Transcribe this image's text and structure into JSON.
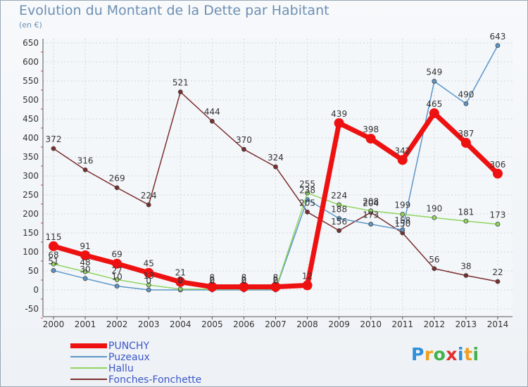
{
  "title": "Evolution du Montant de la Dette par Habitant",
  "unit_label": "(en €)",
  "logo": {
    "letters": [
      "P",
      "r",
      "o",
      "x",
      "i",
      "t",
      "i"
    ],
    "colors": [
      "#2f8fd8",
      "#f0a020",
      "#3fb24a",
      "#e03030",
      "#2f8fd8",
      "#f0a020",
      "#3fb24a"
    ]
  },
  "chart_data": {
    "type": "line",
    "x": [
      "2000",
      "2001",
      "2002",
      "2003",
      "2004",
      "2005",
      "2006",
      "2007",
      "2008",
      "2009",
      "2010",
      "2011",
      "2012",
      "2013",
      "2014"
    ],
    "yticks": [
      -50,
      0,
      50,
      100,
      150,
      200,
      250,
      300,
      350,
      400,
      450,
      500,
      550,
      600,
      650
    ],
    "ylim": [
      -50,
      650
    ],
    "grid": true,
    "legend_position": "bottom-left",
    "series": [
      {
        "name": "Fonches-Fonchette",
        "color": "#7a2e2e",
        "width": 1.5,
        "marker": 3,
        "values": [
          372,
          316,
          269,
          224,
          521,
          444,
          370,
          324,
          205,
          156,
          204,
          150,
          56,
          38,
          22
        ],
        "labels": [
          "372",
          "316",
          "269",
          "224",
          "521",
          "444",
          "370",
          "324",
          "205",
          "156",
          "204",
          "150",
          "56",
          "38",
          "22"
        ]
      },
      {
        "name": "Puzeaux",
        "color": "#5b95c8",
        "width": 1.5,
        "marker": 3,
        "values": [
          51,
          30,
          10,
          0,
          0,
          0,
          0,
          0,
          238,
          188,
          173,
          158,
          549,
          490,
          643
        ],
        "labels": [
          "51",
          "30",
          "10",
          "0",
          "0",
          "0",
          "0",
          "0",
          "238",
          "188",
          "173",
          "158",
          "549",
          "490",
          "643"
        ]
      },
      {
        "name": "Hallu",
        "color": "#8fd460",
        "width": 1.5,
        "marker": 3,
        "values": [
          68,
          48,
          27,
          13,
          2,
          2,
          2,
          2,
          255,
          224,
          208,
          199,
          190,
          181,
          173
        ],
        "labels": [
          "68",
          "48",
          "27",
          "13",
          "2",
          "2",
          "2",
          "2",
          "255",
          "224",
          "208",
          "199",
          "190",
          "181",
          "173"
        ]
      },
      {
        "name": "PUNCHY",
        "color": "#ee1111",
        "width": 7,
        "marker": 7,
        "values": [
          115,
          91,
          69,
          45,
          21,
          8,
          8,
          8,
          12,
          439,
          398,
          342,
          465,
          387,
          306
        ],
        "labels": [
          "115",
          "91",
          "69",
          "45",
          "21",
          "8",
          "8",
          "8",
          "12",
          "439",
          "398",
          "342",
          "465",
          "387",
          "306"
        ]
      }
    ],
    "legend_order": [
      "PUNCHY",
      "Puzeaux",
      "Hallu",
      "Fonches-Fonchette"
    ]
  }
}
